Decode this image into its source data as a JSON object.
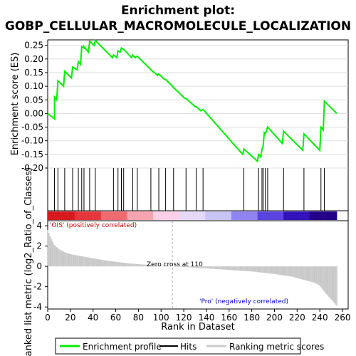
{
  "chart_data": {
    "type": "line",
    "title_line1": "Enrichment plot:",
    "title_line2": "GOBP_CELLULAR_MACROMOLECULE_LOCALIZATION",
    "es_ylabel": "Enrichment score (ES)",
    "metric_ylabel": "Ranked list metric (log2_Ratio_of_Classes)",
    "xlabel": "Rank in Dataset",
    "xlim": [
      0,
      265
    ],
    "es_ylim": [
      -0.2,
      0.27
    ],
    "metric_ylim": [
      -4.2,
      4.5
    ],
    "x_ticks": [
      0,
      20,
      40,
      60,
      80,
      100,
      120,
      140,
      160,
      180,
      200,
      220,
      240,
      260
    ],
    "es_ticks": [
      0.25,
      0.2,
      0.15,
      0.1,
      0.05,
      0.0,
      -0.05,
      -0.1,
      -0.15,
      -0.2
    ],
    "es_tick_labels": [
      "0.25",
      "0.20",
      "0.15",
      "0.10",
      "0.05",
      "0.00",
      "-0.05",
      "-0.10",
      "-0.15",
      "-0.20"
    ],
    "metric_ticks": [
      4,
      2,
      0,
      -2,
      -4
    ],
    "metric_tick_labels": [
      "4",
      "2",
      "0",
      "-2",
      "-4"
    ],
    "zero_cross_rank": 110,
    "zero_cross_label": "Zero cross at 110",
    "pos_label": "'OIS' (positively correlated)",
    "neg_label": "'Pro' (negatively correlated)",
    "dataset_size": 255,
    "hits": [
      6,
      9,
      15,
      22,
      27,
      30,
      32,
      37,
      42,
      58,
      62,
      65,
      67,
      75,
      79,
      91,
      98,
      104,
      111,
      122,
      131,
      137,
      173,
      186,
      189,
      190,
      192,
      194,
      208,
      226,
      241,
      244
    ],
    "es_profile": [
      [
        0,
        0.0
      ],
      [
        6,
        -0.02
      ],
      [
        6,
        0.06
      ],
      [
        8,
        0.05
      ],
      [
        9,
        0.12
      ],
      [
        14,
        0.1
      ],
      [
        15,
        0.155
      ],
      [
        21,
        0.13
      ],
      [
        22,
        0.17
      ],
      [
        26,
        0.16
      ],
      [
        27,
        0.19
      ],
      [
        29,
        0.18
      ],
      [
        30,
        0.245
      ],
      [
        32,
        0.24
      ],
      [
        32,
        0.245
      ],
      [
        36,
        0.225
      ],
      [
        37,
        0.265
      ],
      [
        41,
        0.25
      ],
      [
        42,
        0.268
      ],
      [
        57,
        0.205
      ],
      [
        58,
        0.215
      ],
      [
        61,
        0.205
      ],
      [
        62,
        0.23
      ],
      [
        64,
        0.225
      ],
      [
        65,
        0.24
      ],
      [
        67,
        0.235
      ],
      [
        74,
        0.205
      ],
      [
        75,
        0.215
      ],
      [
        77,
        0.205
      ],
      [
        79,
        0.21
      ],
      [
        90,
        0.165
      ],
      [
        91,
        0.16
      ],
      [
        97,
        0.14
      ],
      [
        98,
        0.145
      ],
      [
        103,
        0.125
      ],
      [
        104,
        0.125
      ],
      [
        110,
        0.1
      ],
      [
        111,
        0.095
      ],
      [
        121,
        0.055
      ],
      [
        122,
        0.055
      ],
      [
        130,
        0.025
      ],
      [
        131,
        0.025
      ],
      [
        135,
        0.01
      ],
      [
        137,
        0.015
      ],
      [
        172,
        -0.15
      ],
      [
        173,
        -0.13
      ],
      [
        185,
        -0.175
      ],
      [
        186,
        -0.15
      ],
      [
        188,
        -0.16
      ],
      [
        189,
        -0.13
      ],
      [
        190,
        -0.12
      ],
      [
        191,
        -0.07
      ],
      [
        192,
        -0.075
      ],
      [
        194,
        -0.05
      ],
      [
        207,
        -0.11
      ],
      [
        208,
        -0.065
      ],
      [
        225,
        -0.135
      ],
      [
        226,
        -0.075
      ],
      [
        240,
        -0.135
      ],
      [
        241,
        -0.05
      ],
      [
        243,
        -0.06
      ],
      [
        244,
        0.045
      ],
      [
        255,
        0.0
      ]
    ],
    "metric_points": [
      [
        0,
        3.6
      ],
      [
        2,
        3.0
      ],
      [
        4,
        2.5
      ],
      [
        6,
        2.1
      ],
      [
        10,
        1.7
      ],
      [
        15,
        1.4
      ],
      [
        20,
        1.2
      ],
      [
        30,
        1.0
      ],
      [
        40,
        0.8
      ],
      [
        50,
        0.6
      ],
      [
        60,
        0.45
      ],
      [
        70,
        0.32
      ],
      [
        80,
        0.22
      ],
      [
        90,
        0.14
      ],
      [
        100,
        0.07
      ],
      [
        110,
        0.0
      ],
      [
        120,
        -0.06
      ],
      [
        140,
        -0.2
      ],
      [
        160,
        -0.35
      ],
      [
        180,
        -0.5
      ],
      [
        200,
        -0.75
      ],
      [
        215,
        -1.0
      ],
      [
        225,
        -1.3
      ],
      [
        235,
        -1.6
      ],
      [
        240,
        -1.9
      ],
      [
        244,
        -2.5
      ],
      [
        248,
        -3.0
      ],
      [
        252,
        -3.5
      ],
      [
        255,
        -3.9
      ]
    ],
    "heat_colors": [
      "#d7191c",
      "#e5363b",
      "#f06a70",
      "#f7a3b0",
      "#fbd0e8",
      "#e6d8f7",
      "#c8c4f5",
      "#8f84ef",
      "#5a43e0",
      "#3311bb",
      "#220088"
    ]
  },
  "legend": {
    "profile_label": "Enrichment profile",
    "hits_label": "Hits",
    "metric_label": "Ranking metric scores",
    "profile_color": "#00ee00",
    "hits_color": "#000000",
    "metric_color": "#cccccc"
  }
}
